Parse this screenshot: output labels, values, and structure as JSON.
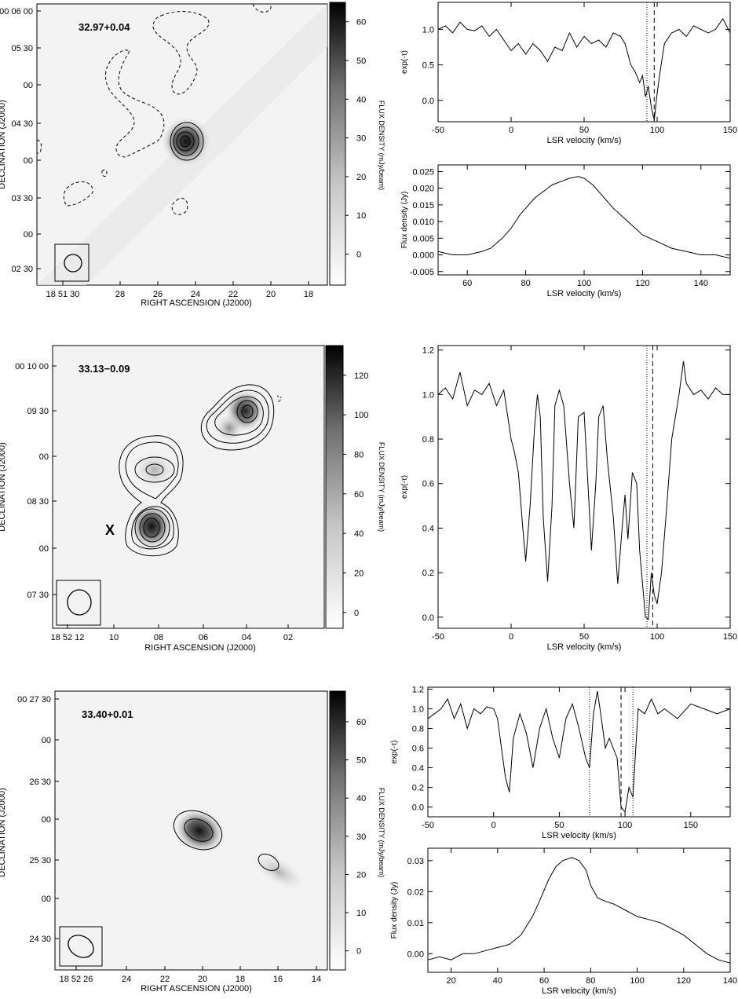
{
  "chart_data": [
    {
      "type": "heatmap",
      "source_label": "32.97+0.04",
      "xlabel": "RIGHT ASCENSION (J2000)",
      "ylabel": "DECLINATION (J2000)",
      "colorbar_label": "FLUX DENSITY (mJy/beam)",
      "colorbar_ticks": [
        "0",
        "10",
        "20",
        "30",
        "40",
        "50",
        "60"
      ],
      "colorbar_range": [
        -8,
        65
      ],
      "x_ticks": [
        "18 51 30",
        "28",
        "26",
        "24",
        "22",
        "20",
        "18"
      ],
      "y_ticks": [
        "00 06 00",
        "05 30",
        "00",
        "04 30",
        "00",
        "03 30",
        "00",
        "02 30"
      ],
      "peak_mJy_per_beam": 62,
      "marker_label": "",
      "beam": "circular"
    },
    {
      "type": "line",
      "xlabel": "LSR velocity (km/s)",
      "ylabel": "exp(-τ)",
      "xlim": [
        -50,
        150
      ],
      "ylim": [
        -0.3,
        1.38
      ],
      "x_ticks": [
        -50,
        0,
        50,
        100,
        150
      ],
      "y_ticks": [
        0.0,
        0.5,
        1.0
      ],
      "vlines_dotted": [
        93
      ],
      "vlines_dashed": [
        98
      ],
      "series": [
        {
          "x": [
            -50,
            -45,
            -40,
            -35,
            -30,
            -25,
            -20,
            -15,
            -10,
            -5,
            0,
            5,
            10,
            15,
            20,
            25,
            30,
            35,
            40,
            45,
            50,
            55,
            60,
            65,
            70,
            75,
            78,
            82,
            85,
            88,
            90,
            92,
            94,
            96,
            98,
            100,
            102,
            105,
            110,
            115,
            120,
            125,
            130,
            135,
            140,
            145,
            150
          ],
          "y": [
            1.0,
            1.05,
            0.95,
            1.1,
            1.0,
            0.98,
            1.05,
            0.9,
            1.0,
            0.85,
            0.7,
            0.8,
            0.65,
            0.8,
            0.7,
            0.55,
            0.75,
            0.7,
            0.95,
            0.75,
            0.9,
            0.8,
            0.85,
            0.75,
            0.95,
            0.9,
            0.8,
            0.5,
            0.4,
            0.25,
            0.35,
            0.05,
            0.2,
            -0.1,
            -0.28,
            0.1,
            0.4,
            0.8,
            0.95,
            1.0,
            0.9,
            1.05,
            1.0,
            0.95,
            1.0,
            1.15,
            0.95
          ]
        }
      ]
    },
    {
      "type": "line",
      "xlabel": "LSR velocity (km/s)",
      "ylabel": "Flux density (Jy)",
      "xlim": [
        50,
        150
      ],
      "ylim": [
        -0.006,
        0.027
      ],
      "x_ticks": [
        60,
        80,
        100,
        120,
        140
      ],
      "y_ticks": [
        -0.005,
        0.0,
        0.005,
        0.01,
        0.015,
        0.02,
        0.025
      ],
      "series": [
        {
          "x": [
            50,
            55,
            60,
            65,
            68,
            72,
            75,
            78,
            80,
            83,
            86,
            89,
            92,
            95,
            98,
            100,
            103,
            106,
            110,
            115,
            120,
            125,
            130,
            135,
            140,
            145,
            150
          ],
          "y": [
            0.001,
            0.0,
            0.0,
            0.001,
            0.002,
            0.005,
            0.008,
            0.012,
            0.014,
            0.017,
            0.019,
            0.021,
            0.022,
            0.023,
            0.0235,
            0.023,
            0.021,
            0.018,
            0.014,
            0.01,
            0.006,
            0.004,
            0.002,
            0.001,
            0.0,
            0.0,
            -0.001
          ]
        }
      ]
    },
    {
      "type": "heatmap",
      "source_label": "33.13−0.09",
      "xlabel": "RIGHT ASCENSION (J2000)",
      "ylabel": "DECLINATION (J2000)",
      "colorbar_label": "FLUX DENSITY (mJy/beam)",
      "colorbar_ticks": [
        "0",
        "20",
        "40",
        "60",
        "80",
        "100",
        "120"
      ],
      "colorbar_range": [
        -8,
        135
      ],
      "x_ticks": [
        "18 52 12",
        "10",
        "08",
        "06",
        "04",
        "02"
      ],
      "y_ticks": [
        "00 10 00",
        "09 30",
        "00",
        "08 30",
        "00",
        "07 30"
      ],
      "peak_mJy_per_beam": 128,
      "marker_label": "X",
      "beam": "circular"
    },
    {
      "type": "line",
      "xlabel": "LSR velocity (km/s)",
      "ylabel": "exp(-τ)",
      "xlim": [
        -50,
        150
      ],
      "ylim": [
        -0.05,
        1.22
      ],
      "x_ticks": [
        -50,
        0,
        50,
        100,
        150
      ],
      "y_ticks": [
        0.0,
        0.2,
        0.4,
        0.6,
        0.8,
        1.0,
        1.2
      ],
      "vlines_dotted": [
        93
      ],
      "vlines_dashed": [
        97
      ],
      "series": [
        {
          "x": [
            -50,
            -45,
            -40,
            -35,
            -30,
            -25,
            -20,
            -15,
            -10,
            -5,
            0,
            2,
            5,
            8,
            10,
            13,
            16,
            18,
            20,
            22,
            25,
            28,
            30,
            33,
            36,
            40,
            43,
            46,
            50,
            53,
            55,
            58,
            60,
            63,
            66,
            70,
            73,
            76,
            78,
            80,
            83,
            86,
            88,
            90,
            92,
            94,
            96,
            98,
            100,
            103,
            106,
            110,
            115,
            118,
            120,
            125,
            130,
            135,
            140,
            145,
            150
          ],
          "y": [
            1.0,
            1.03,
            0.98,
            1.1,
            0.95,
            1.02,
            1.0,
            1.05,
            0.95,
            1.02,
            0.8,
            0.75,
            0.65,
            0.4,
            0.25,
            0.5,
            0.85,
            1.0,
            0.9,
            0.45,
            0.16,
            0.5,
            0.95,
            1.02,
            0.95,
            0.6,
            0.4,
            0.9,
            0.92,
            0.55,
            0.3,
            0.6,
            0.9,
            0.95,
            0.7,
            0.45,
            0.15,
            0.4,
            0.55,
            0.35,
            0.65,
            0.6,
            0.3,
            0.15,
            0.0,
            -0.01,
            0.2,
            0.1,
            0.06,
            0.2,
            0.45,
            0.8,
            1.0,
            1.15,
            1.05,
            1.0,
            1.02,
            0.98,
            1.03,
            1.0,
            1.0
          ]
        }
      ]
    },
    {
      "type": "heatmap",
      "source_label": "33.40+0.01",
      "xlabel": "RIGHT ASCENSION (J2000)",
      "ylabel": "DECLINATION (J2000)",
      "colorbar_label": "FLUX DENSITY (mJy/beam)",
      "colorbar_ticks": [
        "0",
        "10",
        "20",
        "30",
        "40",
        "50",
        "60"
      ],
      "colorbar_range": [
        -5,
        68
      ],
      "x_ticks": [
        "18 52 26",
        "24",
        "22",
        "20",
        "18",
        "16",
        "14"
      ],
      "y_ticks": [
        "00 27 30",
        "00",
        "26 30",
        "00",
        "25 30",
        "00",
        "24 30"
      ],
      "peak_mJy_per_beam": 64,
      "marker_label": "",
      "beam": "elliptical"
    },
    {
      "type": "line",
      "xlabel": "LSR velocity (km/s)",
      "ylabel": "exp(-τ)",
      "xlim": [
        -50,
        180
      ],
      "ylim": [
        -0.1,
        1.22
      ],
      "x_ticks": [
        -50,
        0,
        50,
        100,
        150
      ],
      "y_ticks": [
        0.0,
        0.2,
        0.4,
        0.6,
        0.8,
        1.0,
        1.2
      ],
      "vlines_dotted": [
        73,
        106
      ],
      "vlines_dashed": [
        97
      ],
      "series": [
        {
          "x": [
            -50,
            -45,
            -40,
            -35,
            -30,
            -25,
            -20,
            -15,
            -10,
            -5,
            0,
            3,
            6,
            9,
            12,
            15,
            20,
            25,
            30,
            35,
            40,
            45,
            50,
            55,
            60,
            65,
            70,
            73,
            76,
            79,
            82,
            85,
            88,
            91,
            94,
            97,
            100,
            103,
            106,
            110,
            115,
            120,
            125,
            130,
            140,
            150,
            160,
            170,
            180
          ],
          "y": [
            0.9,
            0.95,
            1.0,
            1.1,
            0.9,
            1.05,
            0.8,
            1.0,
            0.95,
            1.02,
            1.0,
            0.9,
            0.6,
            0.3,
            0.15,
            0.7,
            0.95,
            0.75,
            0.4,
            0.8,
            1.0,
            0.7,
            0.5,
            0.9,
            1.05,
            0.8,
            0.5,
            0.4,
            0.95,
            1.18,
            0.9,
            0.6,
            0.7,
            0.6,
            0.5,
            0.0,
            -0.05,
            0.2,
            0.1,
            1.0,
            0.95,
            1.1,
            0.95,
            1.0,
            0.9,
            1.05,
            1.0,
            0.95,
            1.0
          ]
        }
      ]
    },
    {
      "type": "line",
      "xlabel": "LSR velocity (km/s)",
      "ylabel": "Flux density (Jy)",
      "xlim": [
        10,
        140
      ],
      "ylim": [
        -0.006,
        0.034
      ],
      "x_ticks": [
        20,
        40,
        60,
        80,
        100,
        120,
        140
      ],
      "y_ticks": [
        0.0,
        0.01,
        0.02,
        0.03
      ],
      "series": [
        {
          "x": [
            10,
            15,
            20,
            25,
            30,
            35,
            40,
            45,
            50,
            55,
            58,
            62,
            65,
            68,
            72,
            75,
            78,
            80,
            83,
            86,
            90,
            95,
            100,
            105,
            110,
            115,
            120,
            125,
            130,
            135,
            140
          ],
          "y": [
            -0.002,
            -0.001,
            -0.002,
            0.0,
            0.0,
            0.001,
            0.002,
            0.003,
            0.006,
            0.012,
            0.017,
            0.024,
            0.028,
            0.03,
            0.031,
            0.03,
            0.027,
            0.022,
            0.018,
            0.017,
            0.016,
            0.014,
            0.012,
            0.011,
            0.01,
            0.008,
            0.006,
            0.003,
            0.0,
            -0.002,
            -0.003
          ]
        }
      ]
    }
  ]
}
